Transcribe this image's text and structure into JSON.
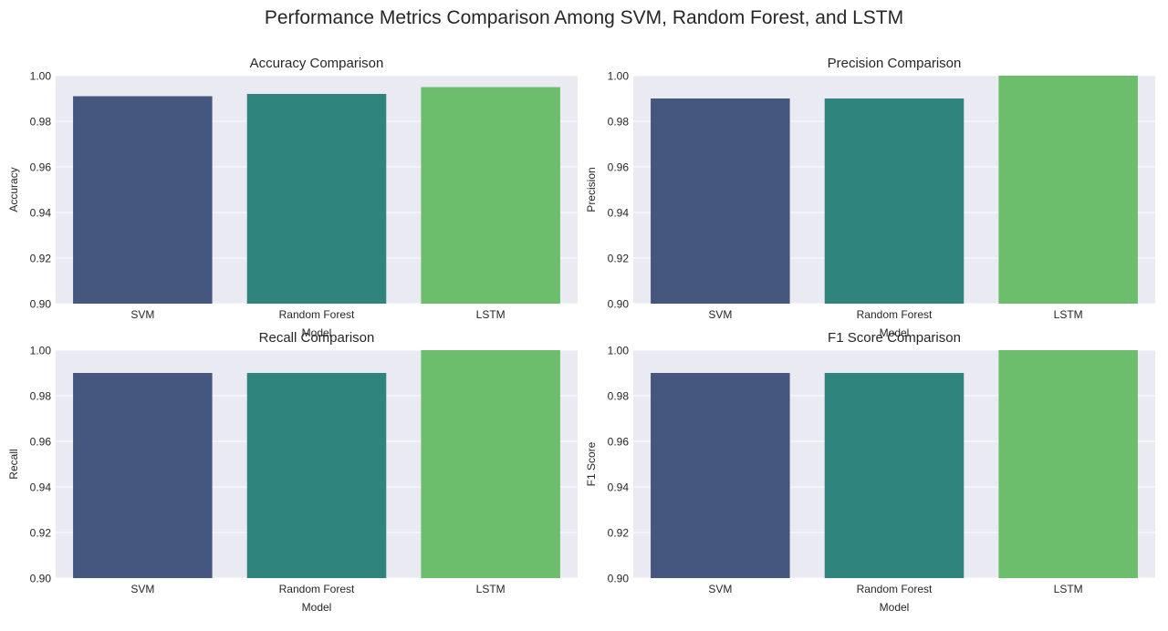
{
  "figure": {
    "title": "Performance Metrics Comparison Among SVM, Random Forest, and LSTM",
    "background": "#ffffff",
    "axes_facecolor": "#eaeaf2",
    "grid_color": "#ffffff"
  },
  "chart_data": [
    {
      "type": "bar",
      "title": "Accuracy Comparison",
      "xlabel": "Model",
      "ylabel": "Accuracy",
      "categories": [
        "SVM",
        "Random Forest",
        "LSTM"
      ],
      "values": [
        0.991,
        0.992,
        0.995
      ],
      "colors": [
        "#46577f",
        "#2f847d",
        "#6cbd6c"
      ],
      "ylim": [
        0.9,
        1.0
      ],
      "yticks": [
        "0.90",
        "0.92",
        "0.94",
        "0.96",
        "0.98",
        "1.00"
      ],
      "grid": true
    },
    {
      "type": "bar",
      "title": "Precision Comparison",
      "xlabel": "Model",
      "ylabel": "Precision",
      "categories": [
        "SVM",
        "Random Forest",
        "LSTM"
      ],
      "values": [
        0.99,
        0.99,
        1.0
      ],
      "colors": [
        "#46577f",
        "#2f847d",
        "#6cbd6c"
      ],
      "ylim": [
        0.9,
        1.0
      ],
      "yticks": [
        "0.90",
        "0.92",
        "0.94",
        "0.96",
        "0.98",
        "1.00"
      ],
      "grid": true
    },
    {
      "type": "bar",
      "title": "Recall Comparison",
      "xlabel": "Model",
      "ylabel": "Recall",
      "categories": [
        "SVM",
        "Random Forest",
        "LSTM"
      ],
      "values": [
        0.99,
        0.99,
        1.0
      ],
      "colors": [
        "#46577f",
        "#2f847d",
        "#6cbd6c"
      ],
      "ylim": [
        0.9,
        1.0
      ],
      "yticks": [
        "0.90",
        "0.92",
        "0.94",
        "0.96",
        "0.98",
        "1.00"
      ],
      "grid": true
    },
    {
      "type": "bar",
      "title": "F1 Score Comparison",
      "xlabel": "Model",
      "ylabel": "F1 Score",
      "categories": [
        "SVM",
        "Random Forest",
        "LSTM"
      ],
      "values": [
        0.99,
        0.99,
        1.0
      ],
      "colors": [
        "#46577f",
        "#2f847d",
        "#6cbd6c"
      ],
      "ylim": [
        0.9,
        1.0
      ],
      "yticks": [
        "0.90",
        "0.92",
        "0.94",
        "0.96",
        "0.98",
        "1.00"
      ],
      "grid": true
    }
  ]
}
